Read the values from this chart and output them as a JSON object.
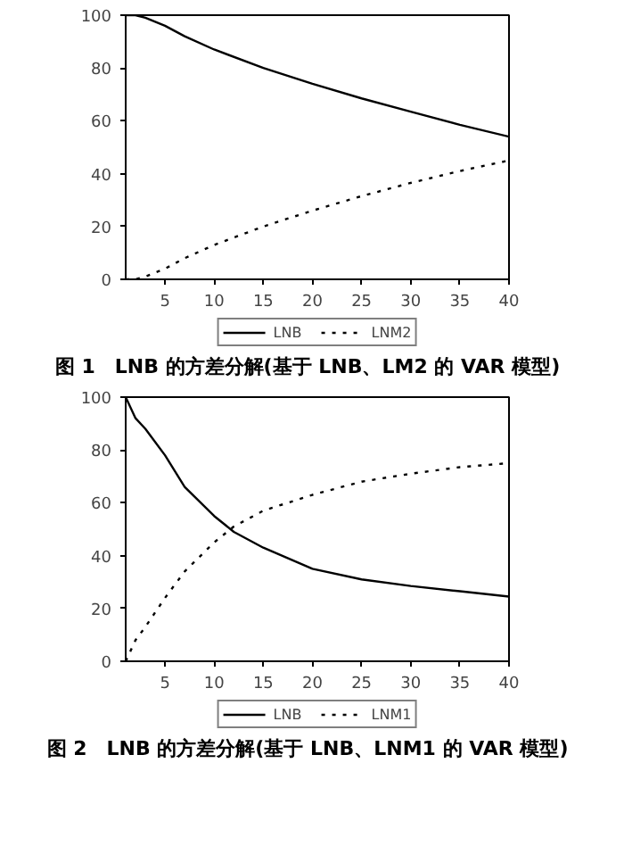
{
  "chart_data": [
    {
      "type": "line",
      "title": "图 1　LNB 的方差分解(基于 LNB、LM2 的 VAR 模型)",
      "legend": "bottom",
      "grid": false,
      "xlim": [
        1,
        40
      ],
      "xticks": [
        5,
        10,
        15,
        20,
        25,
        30,
        35,
        40
      ],
      "ylim": [
        0,
        100
      ],
      "yticks": [
        0,
        20,
        40,
        60,
        80,
        100
      ],
      "series": [
        {
          "name": "LNB",
          "color": "#000000",
          "line_style": "solid",
          "x": [
            1,
            2,
            3,
            5,
            7,
            10,
            15,
            20,
            25,
            30,
            35,
            40
          ],
          "values": [
            100,
            100,
            99,
            96,
            92,
            87,
            80,
            74,
            68.5,
            63.5,
            58.5,
            54
          ]
        },
        {
          "name": "LNM2",
          "color": "#000000",
          "line_style": "dotted",
          "x": [
            1,
            2,
            3,
            5,
            7,
            10,
            15,
            20,
            25,
            30,
            35,
            40
          ],
          "values": [
            0,
            0,
            1,
            4,
            8,
            13,
            20,
            26,
            31.5,
            36.5,
            41,
            45
          ]
        }
      ]
    },
    {
      "type": "line",
      "title": "图 2　LNB 的方差分解(基于 LNB、LNM1 的 VAR 模型)",
      "legend": "bottom",
      "grid": false,
      "xlim": [
        1,
        40
      ],
      "xticks": [
        5,
        10,
        15,
        20,
        25,
        30,
        35,
        40
      ],
      "ylim": [
        0,
        100
      ],
      "yticks": [
        0,
        20,
        40,
        60,
        80,
        100
      ],
      "series": [
        {
          "name": "LNB",
          "color": "#000000",
          "line_style": "solid",
          "x": [
            1,
            2,
            3,
            5,
            7,
            10,
            12,
            15,
            20,
            25,
            30,
            35,
            40
          ],
          "values": [
            100,
            92,
            88,
            78,
            66,
            55,
            49,
            43,
            35,
            31,
            28.5,
            26.5,
            24.5
          ]
        },
        {
          "name": "LNM1",
          "color": "#000000",
          "line_style": "dotted",
          "x": [
            1,
            2,
            3,
            5,
            7,
            10,
            12,
            15,
            20,
            25,
            30,
            35,
            40
          ],
          "values": [
            0,
            8,
            13,
            24,
            34,
            45,
            51,
            57,
            63,
            68,
            71,
            73.5,
            75
          ]
        }
      ]
    }
  ]
}
